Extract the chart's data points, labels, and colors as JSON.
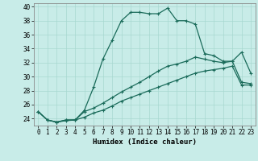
{
  "xlabel": "Humidex (Indice chaleur)",
  "background_color": "#c8ece8",
  "grid_color": "#a8d8d0",
  "line_color": "#1a6b5a",
  "xlim": [
    -0.5,
    23.5
  ],
  "ylim": [
    23.0,
    40.5
  ],
  "xticks": [
    0,
    1,
    2,
    3,
    4,
    5,
    6,
    7,
    8,
    9,
    10,
    11,
    12,
    13,
    14,
    15,
    16,
    17,
    18,
    19,
    20,
    21,
    22,
    23
  ],
  "yticks": [
    24,
    26,
    28,
    30,
    32,
    34,
    36,
    38,
    40
  ],
  "curve1_y": [
    25.0,
    23.8,
    23.5,
    23.7,
    23.8,
    25.2,
    28.5,
    32.5,
    35.2,
    38.0,
    39.2,
    39.2,
    39.0,
    39.0,
    39.8,
    38.0,
    38.0,
    37.5,
    33.3,
    33.0,
    32.2,
    32.2,
    33.5,
    30.5
  ],
  "curve2_y": [
    25.0,
    23.8,
    23.5,
    23.8,
    23.8,
    25.0,
    25.5,
    26.2,
    27.0,
    27.8,
    28.5,
    29.2,
    30.0,
    30.8,
    31.5,
    31.8,
    32.2,
    32.8,
    32.5,
    32.2,
    32.0,
    32.2,
    29.2,
    29.0
  ],
  "curve3_y": [
    25.0,
    23.8,
    23.5,
    23.8,
    23.8,
    24.2,
    24.8,
    25.2,
    25.8,
    26.5,
    27.0,
    27.5,
    28.0,
    28.5,
    29.0,
    29.5,
    30.0,
    30.5,
    30.8,
    31.0,
    31.2,
    31.5,
    28.8,
    28.8
  ],
  "marker": "+",
  "markersize": 3,
  "linewidth": 0.9,
  "xlabel_fontsize": 6.5,
  "tick_fontsize": 5.5
}
